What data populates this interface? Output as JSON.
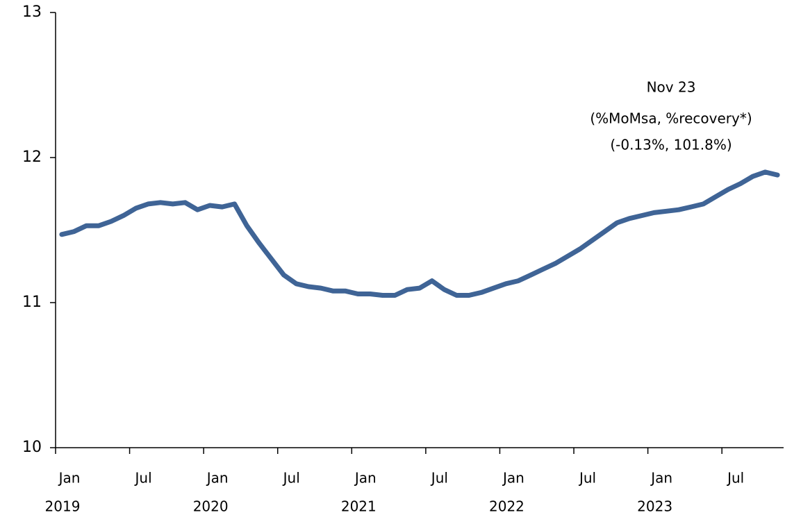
{
  "chart_data": {
    "type": "line",
    "categories": [
      "Jan",
      null,
      null,
      null,
      null,
      null,
      "Jul",
      null,
      null,
      null,
      null,
      null,
      "Jan",
      null,
      null,
      null,
      null,
      null,
      "Jul",
      null,
      null,
      null,
      null,
      null,
      "Jan",
      null,
      null,
      null,
      null,
      null,
      "Jul",
      null,
      null,
      null,
      null,
      null,
      "Jan",
      null,
      null,
      null,
      null,
      null,
      "Jul",
      null,
      null,
      null,
      null,
      null,
      "Jan",
      null,
      null,
      null,
      null,
      null,
      "Jul",
      null,
      null,
      null,
      null
    ],
    "year_labels": [
      "2019",
      "2020",
      "2021",
      "2022",
      "2023"
    ],
    "values": [
      11.47,
      11.49,
      11.53,
      11.53,
      11.56,
      11.6,
      11.65,
      11.68,
      11.69,
      11.68,
      11.69,
      11.64,
      11.67,
      11.66,
      11.68,
      11.53,
      11.41,
      11.3,
      11.19,
      11.13,
      11.11,
      11.1,
      11.08,
      11.08,
      11.06,
      11.06,
      11.05,
      11.05,
      11.09,
      11.1,
      11.15,
      11.09,
      11.05,
      11.05,
      11.07,
      11.1,
      11.13,
      11.15,
      11.19,
      11.23,
      11.27,
      11.32,
      11.37,
      11.43,
      11.49,
      11.55,
      11.58,
      11.6,
      11.62,
      11.63,
      11.64,
      11.66,
      11.68,
      11.73,
      11.78,
      11.82,
      11.87,
      11.9,
      11.88
    ],
    "color": "#3f6496",
    "ylim": [
      10,
      13
    ],
    "yticks": [
      10,
      11,
      12,
      13
    ],
    "annotations": [
      "Nov 23",
      "(%MoMsa, %recovery*)",
      "(-0.13%, 101.8%)"
    ]
  }
}
